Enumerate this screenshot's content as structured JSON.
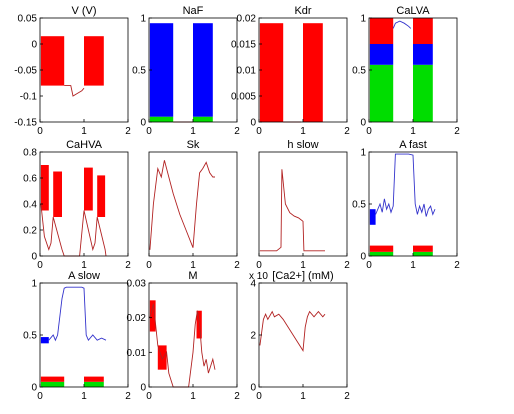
{
  "chart_data": [
    {
      "type": "line",
      "title": "V (V)",
      "xlim": [
        0,
        2
      ],
      "ylim": [
        -0.15,
        0.05
      ],
      "xticks": [
        "0",
        "1",
        "2"
      ],
      "yticks": [
        "0.05",
        "0",
        "-0.05",
        "-0.1",
        "-0.15"
      ],
      "ytick_values": [
        0.05,
        0,
        -0.05,
        -0.1,
        -0.15
      ],
      "bursts": [
        {
          "x0": 0.02,
          "x1": 0.55,
          "lo": -0.08,
          "hi": 0.015,
          "color": "#ff0000"
        },
        {
          "x0": 1.0,
          "x1": 1.45,
          "lo": -0.08,
          "hi": 0.015,
          "color": "#ff0000"
        }
      ],
      "trace": {
        "color": "#b22222",
        "x": [
          0.55,
          0.7,
          0.75,
          0.85,
          0.95,
          1.0
        ],
        "y": [
          -0.08,
          -0.08,
          -0.1,
          -0.095,
          -0.09,
          -0.085
        ]
      }
    },
    {
      "type": "line",
      "title": "NaF",
      "xlim": [
        0,
        2
      ],
      "ylim": [
        0,
        1
      ],
      "xticks": [
        "0",
        "1",
        "2"
      ],
      "yticks": [
        "1",
        "0.5",
        "0"
      ],
      "ytick_values": [
        1,
        0.5,
        0
      ],
      "bursts": [
        {
          "x0": 0.02,
          "x1": 0.55,
          "lo": 0.05,
          "hi": 0.95,
          "color": "#0000ff"
        },
        {
          "x0": 0.02,
          "x1": 0.55,
          "lo": 0.0,
          "hi": 0.05,
          "color": "#00dd00"
        },
        {
          "x0": 1.0,
          "x1": 1.45,
          "lo": 0.05,
          "hi": 0.95,
          "color": "#0000ff"
        },
        {
          "x0": 1.0,
          "x1": 1.45,
          "lo": 0.0,
          "hi": 0.05,
          "color": "#00dd00"
        }
      ],
      "trace": {
        "color": "#b22222",
        "x": [
          0.55,
          0.56,
          0.95,
          1.0
        ],
        "y": [
          0.0,
          0.0,
          0.0,
          0.0
        ]
      }
    },
    {
      "type": "line",
      "title": "Kdr",
      "xlim": [
        0,
        2
      ],
      "ylim": [
        0,
        0.02
      ],
      "xticks": [
        "0",
        "1",
        "2"
      ],
      "yticks": [
        "0.02",
        "0.015",
        "0.01",
        "0.005",
        "0"
      ],
      "ytick_values": [
        0.02,
        0.015,
        0.01,
        0.005,
        0
      ],
      "bursts": [
        {
          "x0": 0.02,
          "x1": 0.55,
          "lo": 0.0,
          "hi": 0.019,
          "color": "#ff0000"
        },
        {
          "x0": 1.0,
          "x1": 1.45,
          "lo": 0.0,
          "hi": 0.019,
          "color": "#ff0000"
        }
      ],
      "trace": {
        "color": "#b22222",
        "x": [
          0.55,
          0.95
        ],
        "y": [
          0.0,
          0.0
        ]
      }
    },
    {
      "type": "line",
      "title": "CaLVA",
      "xlim": [
        0,
        2
      ],
      "ylim": [
        0,
        1
      ],
      "xticks": [
        "0",
        "1",
        "2"
      ],
      "yticks": [
        "1",
        "0.5",
        "0"
      ],
      "ytick_values": [
        1,
        0.5,
        0
      ],
      "bursts": [
        {
          "x0": 0.02,
          "x1": 0.55,
          "lo": 0.0,
          "hi": 0.55,
          "color": "#00dd00"
        },
        {
          "x0": 0.02,
          "x1": 0.55,
          "lo": 0.55,
          "hi": 0.75,
          "color": "#0000ff"
        },
        {
          "x0": 0.02,
          "x1": 0.55,
          "lo": 0.75,
          "hi": 1.0,
          "color": "#ff0000"
        },
        {
          "x0": 1.0,
          "x1": 1.45,
          "lo": 0.0,
          "hi": 0.55,
          "color": "#00dd00"
        },
        {
          "x0": 1.0,
          "x1": 1.45,
          "lo": 0.55,
          "hi": 0.75,
          "color": "#0000ff"
        },
        {
          "x0": 1.0,
          "x1": 1.45,
          "lo": 0.75,
          "hi": 1.0,
          "color": "#ff0000"
        }
      ],
      "trace": {
        "color": "#3333cc",
        "x": [
          0.55,
          0.6,
          0.7,
          0.8,
          0.9,
          0.95
        ],
        "y": [
          0.9,
          0.95,
          0.97,
          0.95,
          0.92,
          0.9
        ]
      }
    },
    {
      "type": "line",
      "title": "CaHVA",
      "xlim": [
        0,
        2
      ],
      "ylim": [
        0,
        0.8
      ],
      "xticks": [
        "0",
        "1",
        "2"
      ],
      "yticks": [
        "0.8",
        "0.6",
        "0.4",
        "0.2",
        "0"
      ],
      "ytick_values": [
        0.8,
        0.6,
        0.4,
        0.2,
        0
      ],
      "bursts": [
        {
          "x0": 0.02,
          "x1": 0.2,
          "lo": 0.35,
          "hi": 0.7,
          "color": "#ff0000"
        },
        {
          "x0": 0.3,
          "x1": 0.5,
          "lo": 0.3,
          "hi": 0.65,
          "color": "#ff0000"
        },
        {
          "x0": 1.0,
          "x1": 1.2,
          "lo": 0.35,
          "hi": 0.68,
          "color": "#ff0000"
        },
        {
          "x0": 1.3,
          "x1": 1.48,
          "lo": 0.3,
          "hi": 0.62,
          "color": "#ff0000"
        }
      ],
      "trace": {
        "color": "#b22222",
        "x": [
          0.02,
          0.1,
          0.2,
          0.25,
          0.3,
          0.5,
          0.55,
          0.7,
          0.9,
          1.0,
          1.2,
          1.25,
          1.3,
          1.48,
          1.5
        ],
        "y": [
          0.4,
          0.15,
          0.05,
          0.1,
          0.3,
          0.05,
          0.0,
          0.0,
          0.0,
          0.35,
          0.05,
          0.1,
          0.3,
          0.05,
          0.0
        ]
      }
    },
    {
      "type": "line",
      "title": "Sk",
      "xlim": [
        0,
        2
      ],
      "ylim": [
        0,
        0.5
      ],
      "xticks": [
        "0",
        "1",
        "2"
      ],
      "yticks": [],
      "ytick_values": [],
      "bursts": [],
      "trace": {
        "color": "#b22222",
        "x": [
          0.02,
          0.1,
          0.2,
          0.28,
          0.35,
          0.45,
          0.55,
          0.7,
          0.85,
          1.0,
          1.08,
          1.15,
          1.22,
          1.3,
          1.38,
          1.45,
          1.5
        ],
        "y": [
          0.03,
          0.25,
          0.42,
          0.38,
          0.46,
          0.38,
          0.3,
          0.2,
          0.12,
          0.04,
          0.25,
          0.4,
          0.42,
          0.45,
          0.4,
          0.38,
          0.38
        ]
      }
    },
    {
      "type": "line",
      "title": "h slow",
      "xlim": [
        0,
        2
      ],
      "ylim": [
        0,
        0.6
      ],
      "xticks": [
        "0",
        "1",
        "2"
      ],
      "yticks": [],
      "ytick_values": [],
      "bursts": [],
      "trace": {
        "color": "#b22222",
        "x": [
          0.02,
          0.4,
          0.5,
          0.52,
          0.6,
          0.7,
          0.8,
          0.9,
          0.95,
          1.0,
          1.02,
          1.1,
          1.5
        ],
        "y": [
          0.03,
          0.03,
          0.05,
          0.5,
          0.3,
          0.25,
          0.23,
          0.22,
          0.21,
          0.2,
          0.03,
          0.03,
          0.03
        ]
      }
    },
    {
      "type": "line",
      "title": "A fast",
      "xlim": [
        0,
        2
      ],
      "ylim": [
        0,
        1
      ],
      "xticks": [
        "0",
        "1",
        "2"
      ],
      "yticks": [
        "1",
        "0.5",
        "0"
      ],
      "ytick_values": [
        1,
        0.5,
        0
      ],
      "bursts": [
        {
          "x0": 0.02,
          "x1": 0.15,
          "lo": 0.3,
          "hi": 0.45,
          "color": "#0000ff"
        },
        {
          "x0": 0.02,
          "x1": 0.55,
          "lo": 0.0,
          "hi": 0.04,
          "color": "#00dd00"
        },
        {
          "x0": 0.02,
          "x1": 0.55,
          "lo": 0.04,
          "hi": 0.1,
          "color": "#ff0000"
        },
        {
          "x0": 1.0,
          "x1": 1.45,
          "lo": 0.0,
          "hi": 0.04,
          "color": "#00dd00"
        },
        {
          "x0": 1.0,
          "x1": 1.45,
          "lo": 0.04,
          "hi": 0.1,
          "color": "#ff0000"
        }
      ],
      "trace": {
        "color": "#3333cc",
        "x": [
          0.15,
          0.25,
          0.3,
          0.35,
          0.4,
          0.45,
          0.5,
          0.55,
          0.6,
          0.9,
          1.0,
          1.05,
          1.1,
          1.15,
          1.2,
          1.25,
          1.3,
          1.35,
          1.4,
          1.45,
          1.5
        ],
        "y": [
          0.4,
          0.5,
          0.42,
          0.55,
          0.45,
          0.5,
          0.42,
          0.48,
          0.98,
          0.98,
          0.97,
          0.5,
          0.4,
          0.48,
          0.42,
          0.5,
          0.38,
          0.45,
          0.48,
          0.4,
          0.45
        ]
      }
    },
    {
      "type": "line",
      "title": "A slow",
      "xlim": [
        0,
        2
      ],
      "ylim": [
        0,
        1
      ],
      "xticks": [
        "0",
        "1",
        "2"
      ],
      "yticks": [
        "1",
        "0.5",
        "0"
      ],
      "ytick_values": [
        1,
        0.5,
        0
      ],
      "bursts": [
        {
          "x0": 0.02,
          "x1": 0.2,
          "lo": 0.42,
          "hi": 0.48,
          "color": "#0000ff"
        },
        {
          "x0": 0.02,
          "x1": 0.55,
          "lo": 0.0,
          "hi": 0.05,
          "color": "#00dd00"
        },
        {
          "x0": 0.02,
          "x1": 0.55,
          "lo": 0.05,
          "hi": 0.1,
          "color": "#ff0000"
        },
        {
          "x0": 1.0,
          "x1": 1.45,
          "lo": 0.0,
          "hi": 0.05,
          "color": "#00dd00"
        },
        {
          "x0": 1.0,
          "x1": 1.45,
          "lo": 0.05,
          "hi": 0.1,
          "color": "#ff0000"
        }
      ],
      "trace": {
        "color": "#3333cc",
        "x": [
          0.2,
          0.3,
          0.35,
          0.4,
          0.5,
          0.55,
          0.6,
          0.95,
          1.0,
          1.05,
          1.1,
          1.2,
          1.3,
          1.4,
          1.5
        ],
        "y": [
          0.45,
          0.5,
          0.45,
          0.5,
          0.85,
          0.95,
          0.96,
          0.96,
          0.95,
          0.5,
          0.45,
          0.5,
          0.45,
          0.47,
          0.45
        ]
      }
    },
    {
      "type": "line",
      "title": "M",
      "xlim": [
        0,
        2
      ],
      "ylim": [
        0,
        0.03
      ],
      "xticks": [
        "0",
        "1",
        "2"
      ],
      "yticks": [
        "0.03",
        "0.02",
        "0.01",
        "0"
      ],
      "ytick_values": [
        0.03,
        0.02,
        0.01,
        0
      ],
      "bursts": [
        {
          "x0": 0.02,
          "x1": 0.15,
          "lo": 0.016,
          "hi": 0.025,
          "color": "#ff0000"
        },
        {
          "x0": 0.2,
          "x1": 0.4,
          "lo": 0.005,
          "hi": 0.012,
          "color": "#ff0000"
        },
        {
          "x0": 1.08,
          "x1": 1.2,
          "lo": 0.014,
          "hi": 0.022,
          "color": "#ff0000"
        }
      ],
      "trace": {
        "color": "#b22222",
        "x": [
          0.02,
          0.1,
          0.15,
          0.2,
          0.3,
          0.4,
          0.45,
          0.5,
          0.55,
          0.6,
          0.9,
          1.0,
          1.05,
          1.1,
          1.15,
          1.2,
          1.25,
          1.3,
          1.35,
          1.4,
          1.45,
          1.5
        ],
        "y": [
          0.02,
          0.024,
          0.018,
          0.012,
          0.008,
          0.01,
          0.004,
          0.002,
          0.0,
          0.0,
          0.0,
          0.01,
          0.018,
          0.022,
          0.018,
          0.01,
          0.006,
          0.008,
          0.004,
          0.006,
          0.008,
          0.005
        ]
      }
    },
    {
      "type": "line",
      "title": "[Ca2+] (mM)",
      "xlim": [
        0,
        2
      ],
      "ylim": [
        0,
        4
      ],
      "xticks": [
        "0",
        "1",
        "2"
      ],
      "yticks": [
        "4",
        "2",
        "0"
      ],
      "ytick_values": [
        4,
        2,
        0
      ],
      "exponent": "x 10",
      "bursts": [],
      "trace": {
        "color": "#b22222",
        "x": [
          0.02,
          0.1,
          0.15,
          0.2,
          0.3,
          0.35,
          0.45,
          0.55,
          1.0,
          1.05,
          1.1,
          1.15,
          1.25,
          1.35,
          1.45,
          1.5
        ],
        "y": [
          1.6,
          2.6,
          2.8,
          2.6,
          2.9,
          2.7,
          2.8,
          2.6,
          1.4,
          2.3,
          2.7,
          2.9,
          2.7,
          2.9,
          2.7,
          2.8
        ]
      }
    }
  ]
}
